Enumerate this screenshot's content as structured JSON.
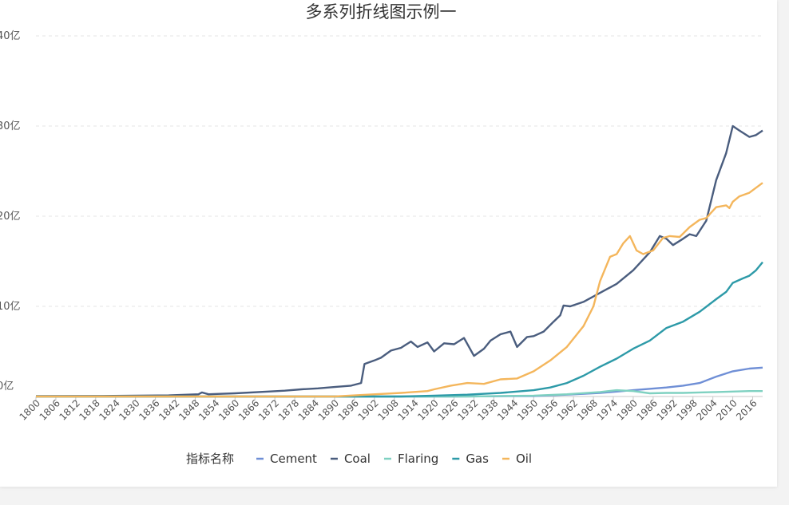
{
  "chart_data": {
    "type": "line",
    "title": "多系列折线图示例一",
    "y_unit_suffix": "亿",
    "ylim": [
      0,
      40
    ],
    "yticks": [
      0,
      10,
      20,
      30,
      40
    ],
    "xlim": [
      1800,
      2019
    ],
    "xticks": [
      1800,
      1806,
      1812,
      1818,
      1824,
      1830,
      1836,
      1842,
      1848,
      1854,
      1860,
      1866,
      1872,
      1878,
      1884,
      1890,
      1896,
      1902,
      1908,
      1914,
      1920,
      1926,
      1932,
      1938,
      1944,
      1950,
      1956,
      1962,
      1968,
      1974,
      1980,
      1986,
      1992,
      1998,
      2004,
      2010,
      2016
    ],
    "grid": true,
    "legend": {
      "title": "指标名称",
      "position": "bottom"
    },
    "series": [
      {
        "name": "Cement",
        "color": "#6f8fd6",
        "points": [
          [
            1800,
            0
          ],
          [
            1925,
            0
          ],
          [
            1950,
            0.05
          ],
          [
            1960,
            0.2
          ],
          [
            1970,
            0.4
          ],
          [
            1980,
            0.7
          ],
          [
            1990,
            1.0
          ],
          [
            1995,
            1.2
          ],
          [
            2000,
            1.5
          ],
          [
            2005,
            2.2
          ],
          [
            2010,
            2.8
          ],
          [
            2015,
            3.1
          ],
          [
            2019,
            3.2
          ]
        ]
      },
      {
        "name": "Coal",
        "color": "#4a5d7e",
        "points": [
          [
            1800,
            0.04
          ],
          [
            1820,
            0.06
          ],
          [
            1840,
            0.12
          ],
          [
            1849,
            0.25
          ],
          [
            1850,
            0.45
          ],
          [
            1852,
            0.25
          ],
          [
            1860,
            0.35
          ],
          [
            1870,
            0.55
          ],
          [
            1875,
            0.65
          ],
          [
            1880,
            0.8
          ],
          [
            1885,
            0.9
          ],
          [
            1890,
            1.05
          ],
          [
            1895,
            1.2
          ],
          [
            1898,
            1.5
          ],
          [
            1899,
            3.6
          ],
          [
            1902,
            4.0
          ],
          [
            1904,
            4.3
          ],
          [
            1907,
            5.1
          ],
          [
            1910,
            5.4
          ],
          [
            1913,
            6.1
          ],
          [
            1915,
            5.5
          ],
          [
            1918,
            6.0
          ],
          [
            1920,
            5.0
          ],
          [
            1923,
            5.9
          ],
          [
            1926,
            5.8
          ],
          [
            1929,
            6.5
          ],
          [
            1932,
            4.5
          ],
          [
            1935,
            5.3
          ],
          [
            1937,
            6.2
          ],
          [
            1940,
            6.9
          ],
          [
            1943,
            7.2
          ],
          [
            1945,
            5.5
          ],
          [
            1948,
            6.6
          ],
          [
            1950,
            6.7
          ],
          [
            1953,
            7.2
          ],
          [
            1956,
            8.3
          ],
          [
            1958,
            9.0
          ],
          [
            1959,
            10.1
          ],
          [
            1961,
            10.0
          ],
          [
            1965,
            10.5
          ],
          [
            1970,
            11.5
          ],
          [
            1975,
            12.5
          ],
          [
            1980,
            14.0
          ],
          [
            1985,
            16.0
          ],
          [
            1988,
            17.8
          ],
          [
            1990,
            17.5
          ],
          [
            1992,
            16.8
          ],
          [
            1995,
            17.5
          ],
          [
            1997,
            18.0
          ],
          [
            1999,
            17.8
          ],
          [
            2002,
            19.5
          ],
          [
            2005,
            24.0
          ],
          [
            2008,
            27.0
          ],
          [
            2010,
            30.0
          ],
          [
            2012,
            29.5
          ],
          [
            2015,
            28.8
          ],
          [
            2017,
            29.0
          ],
          [
            2019,
            29.5
          ]
        ]
      },
      {
        "name": "Flaring",
        "color": "#7fd1c1",
        "points": [
          [
            1800,
            0
          ],
          [
            1930,
            0
          ],
          [
            1950,
            0.1
          ],
          [
            1960,
            0.25
          ],
          [
            1970,
            0.5
          ],
          [
            1975,
            0.7
          ],
          [
            1980,
            0.6
          ],
          [
            1985,
            0.35
          ],
          [
            1990,
            0.4
          ],
          [
            1995,
            0.4
          ],
          [
            2000,
            0.45
          ],
          [
            2005,
            0.5
          ],
          [
            2010,
            0.55
          ],
          [
            2015,
            0.6
          ],
          [
            2019,
            0.6
          ]
        ]
      },
      {
        "name": "Gas",
        "color": "#2d9aa8",
        "points": [
          [
            1800,
            0
          ],
          [
            1910,
            0
          ],
          [
            1920,
            0.1
          ],
          [
            1930,
            0.2
          ],
          [
            1940,
            0.4
          ],
          [
            1950,
            0.7
          ],
          [
            1955,
            1.0
          ],
          [
            1960,
            1.5
          ],
          [
            1965,
            2.3
          ],
          [
            1970,
            3.3
          ],
          [
            1975,
            4.2
          ],
          [
            1980,
            5.3
          ],
          [
            1985,
            6.2
          ],
          [
            1990,
            7.6
          ],
          [
            1995,
            8.3
          ],
          [
            2000,
            9.4
          ],
          [
            2005,
            10.8
          ],
          [
            2008,
            11.6
          ],
          [
            2010,
            12.6
          ],
          [
            2013,
            13.1
          ],
          [
            2015,
            13.4
          ],
          [
            2017,
            14.0
          ],
          [
            2019,
            14.9
          ]
        ]
      },
      {
        "name": "Oil",
        "color": "#f4b65c",
        "points": [
          [
            1800,
            0
          ],
          [
            1890,
            0
          ],
          [
            1900,
            0.2
          ],
          [
            1910,
            0.4
          ],
          [
            1918,
            0.6
          ],
          [
            1920,
            0.8
          ],
          [
            1925,
            1.2
          ],
          [
            1930,
            1.5
          ],
          [
            1935,
            1.4
          ],
          [
            1940,
            1.9
          ],
          [
            1945,
            2.0
          ],
          [
            1950,
            2.8
          ],
          [
            1955,
            4.0
          ],
          [
            1960,
            5.5
          ],
          [
            1965,
            7.8
          ],
          [
            1968,
            10.0
          ],
          [
            1970,
            12.8
          ],
          [
            1973,
            15.5
          ],
          [
            1975,
            15.8
          ],
          [
            1977,
            17.0
          ],
          [
            1979,
            17.8
          ],
          [
            1981,
            16.2
          ],
          [
            1983,
            15.8
          ],
          [
            1986,
            16.2
          ],
          [
            1989,
            17.6
          ],
          [
            1991,
            17.8
          ],
          [
            1994,
            17.7
          ],
          [
            1997,
            18.8
          ],
          [
            2000,
            19.6
          ],
          [
            2002,
            19.8
          ],
          [
            2005,
            21.0
          ],
          [
            2008,
            21.2
          ],
          [
            2009,
            20.9
          ],
          [
            2010,
            21.6
          ],
          [
            2012,
            22.2
          ],
          [
            2015,
            22.6
          ],
          [
            2019,
            23.7
          ]
        ]
      }
    ]
  }
}
